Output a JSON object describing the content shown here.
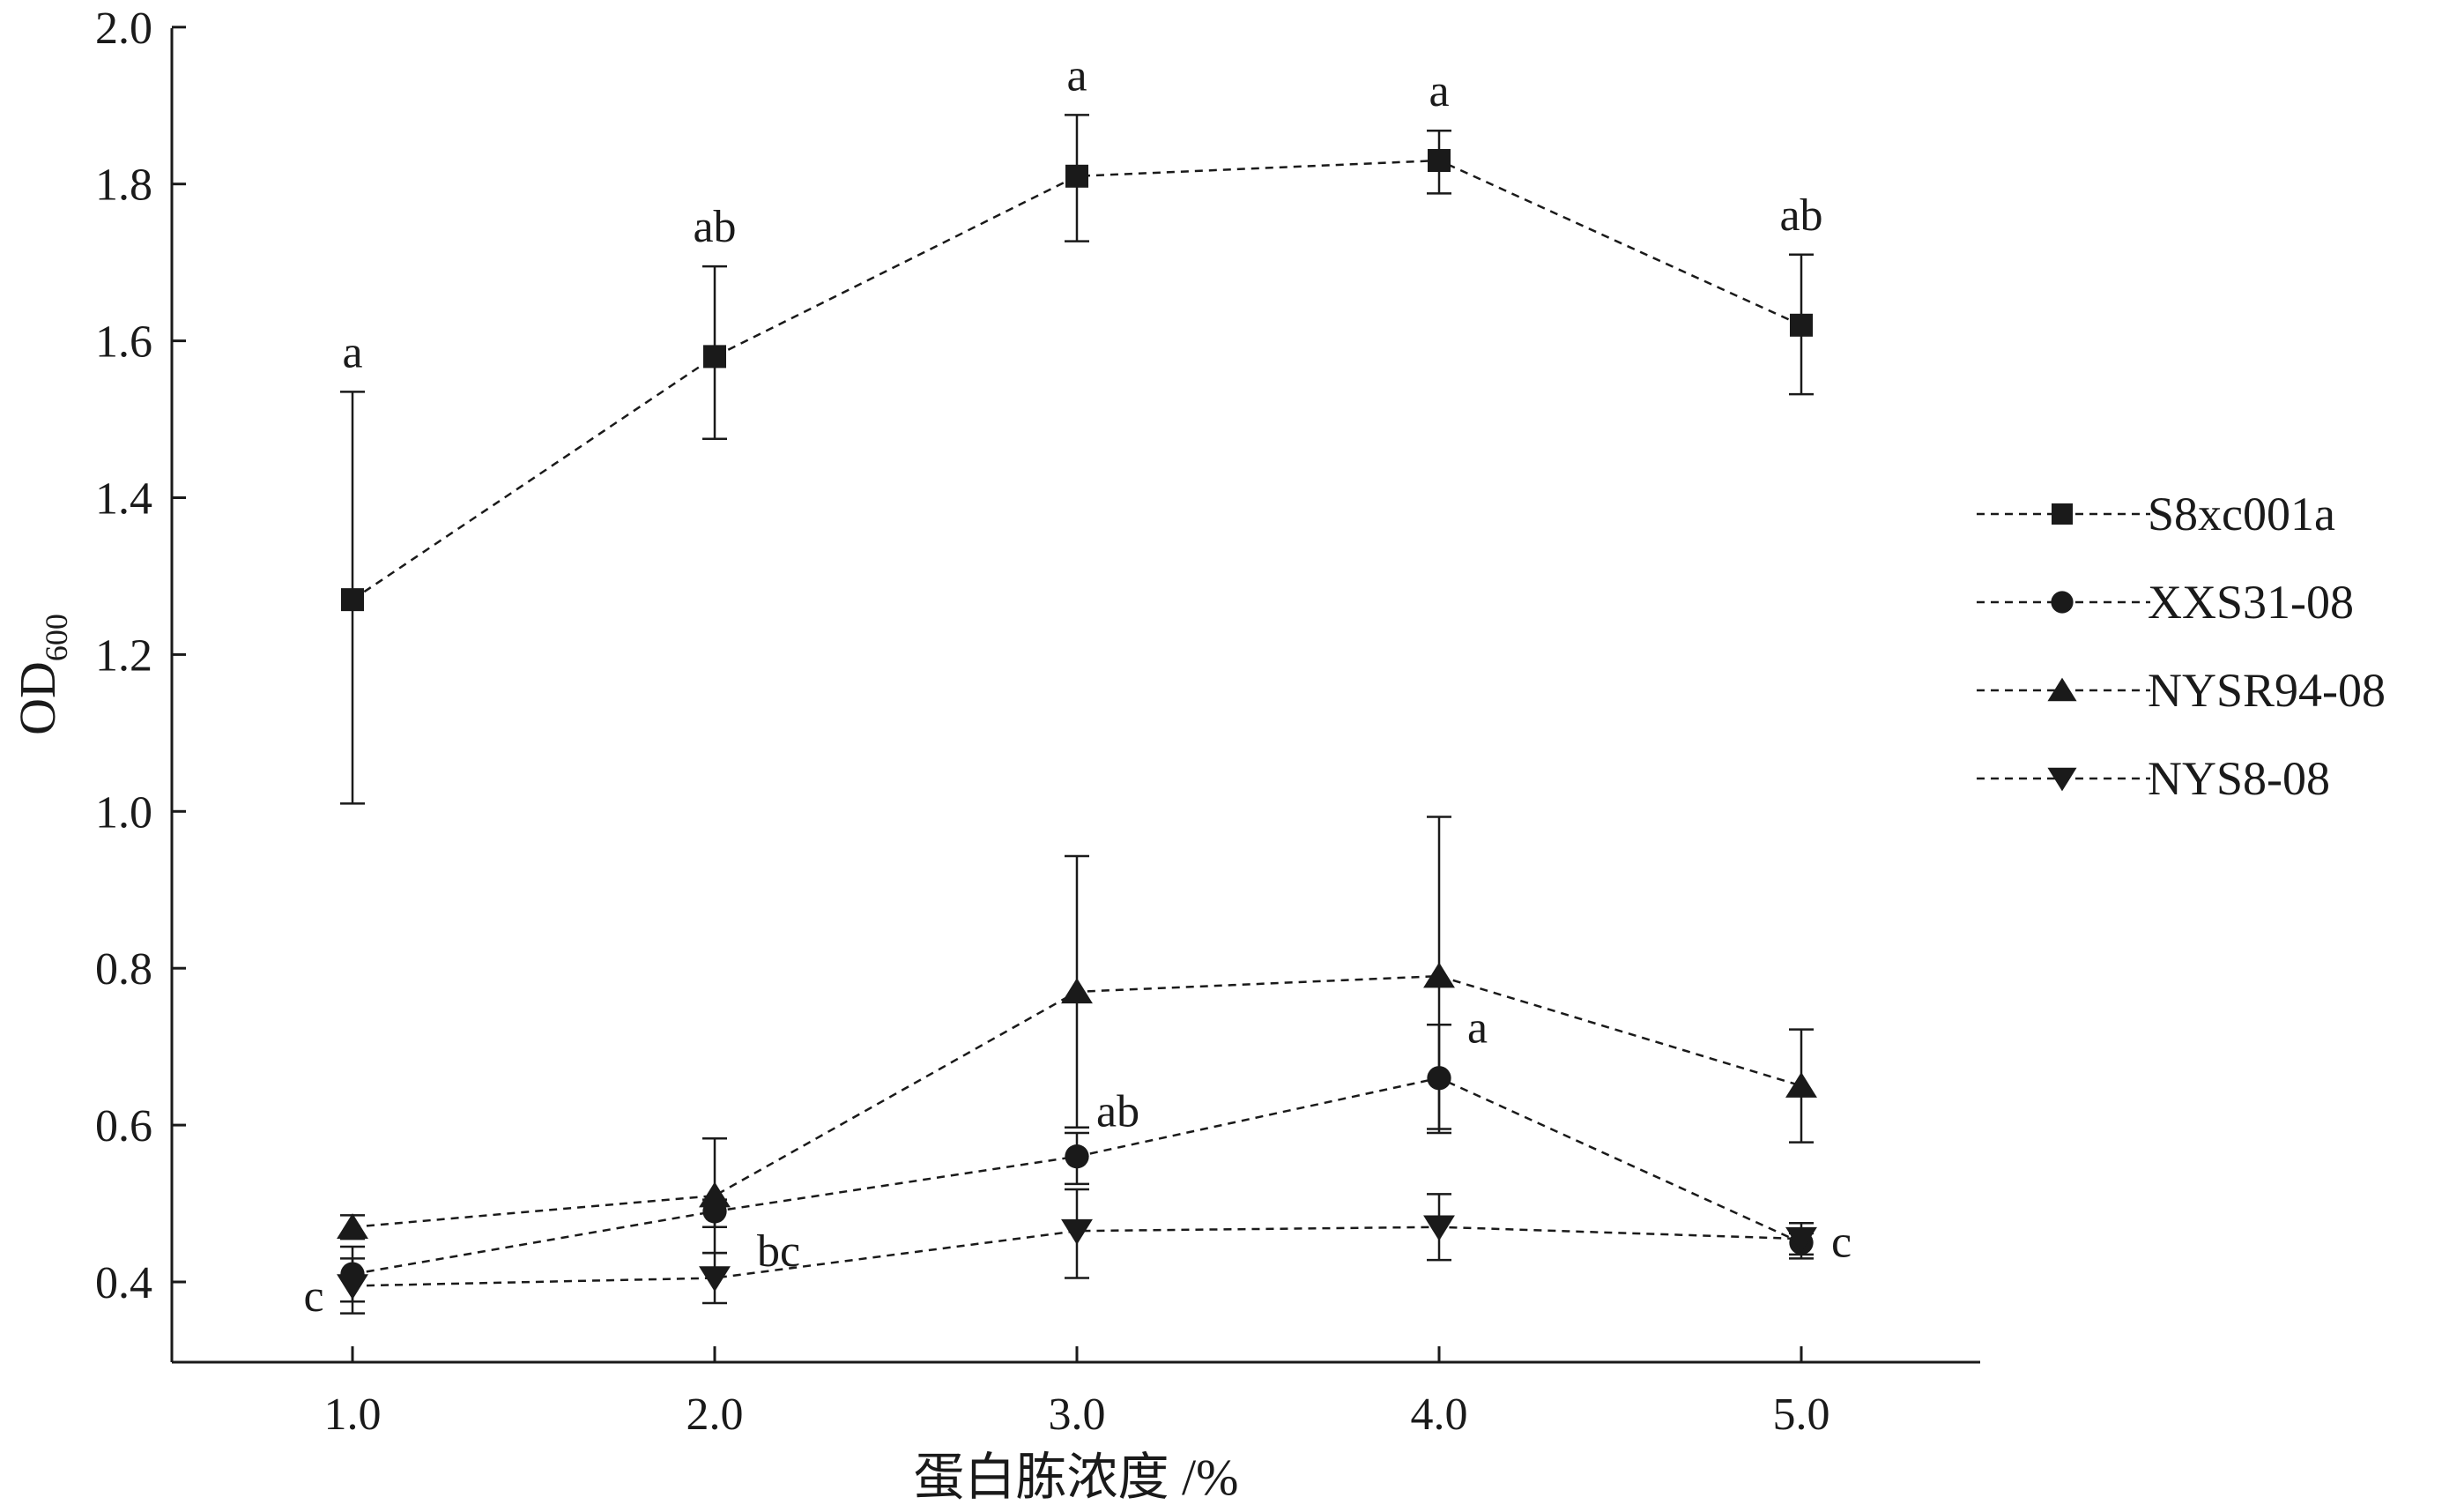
{
  "chart_data": {
    "type": "line",
    "title": "",
    "xlabel": "蛋白胨浓度 /%",
    "ylabel": "OD",
    "ylabel_sub": "600",
    "x": [
      1.0,
      2.0,
      3.0,
      4.0,
      5.0
    ],
    "x_tick_labels": [
      "1.0",
      "2.0",
      "3.0",
      "4.0",
      "5.0"
    ],
    "xlim": [
      0.5,
      5.5
    ],
    "ylim": [
      0.3,
      2.0
    ],
    "y_ticks": [
      0.4,
      0.6,
      0.8,
      1.0,
      1.2,
      1.4,
      1.6,
      1.8,
      2.0
    ],
    "y_tick_labels": [
      "0.4",
      "0.6",
      "0.8",
      "1.0",
      "1.2",
      "1.4",
      "1.6",
      "1.8",
      "2.0"
    ],
    "grid": false,
    "legend_position": "right",
    "series": [
      {
        "name": "S8xc001a",
        "marker": "square",
        "values": [
          1.27,
          1.58,
          1.81,
          1.83,
          1.62
        ],
        "err_upper": [
          1.535,
          1.695,
          1.888,
          1.868,
          1.71
        ],
        "err_lower": [
          1.01,
          1.475,
          1.727,
          1.788,
          1.532
        ],
        "labels": [
          "a",
          "ab",
          "a",
          "a",
          "ab"
        ]
      },
      {
        "name": "XXS31-08",
        "marker": "circle",
        "values": [
          0.41,
          0.49,
          0.56,
          0.66,
          0.45
        ],
        "err_upper": [
          0.445,
          0.505,
          0.59,
          0.728,
          0.462
        ],
        "err_lower": [
          0.375,
          0.47,
          0.525,
          0.595,
          0.43
        ],
        "labels": [
          "c",
          "bc",
          "ab",
          "a",
          "c"
        ]
      },
      {
        "name": "NYSR94-08",
        "marker": "triangle-up",
        "values": [
          0.47,
          0.51,
          0.77,
          0.79,
          0.65
        ],
        "err_upper": [
          0.485,
          0.583,
          0.943,
          0.993,
          0.722
        ],
        "err_lower": [
          0.455,
          0.437,
          0.597,
          0.59,
          0.578
        ],
        "labels": []
      },
      {
        "name": "NYS8-08",
        "marker": "triangle-down",
        "values": [
          0.395,
          0.405,
          0.465,
          0.47,
          0.455
        ],
        "err_upper": [
          0.43,
          0.437,
          0.518,
          0.512,
          0.475
        ],
        "err_lower": [
          0.36,
          0.373,
          0.405,
          0.428,
          0.435
        ],
        "labels": []
      }
    ]
  }
}
